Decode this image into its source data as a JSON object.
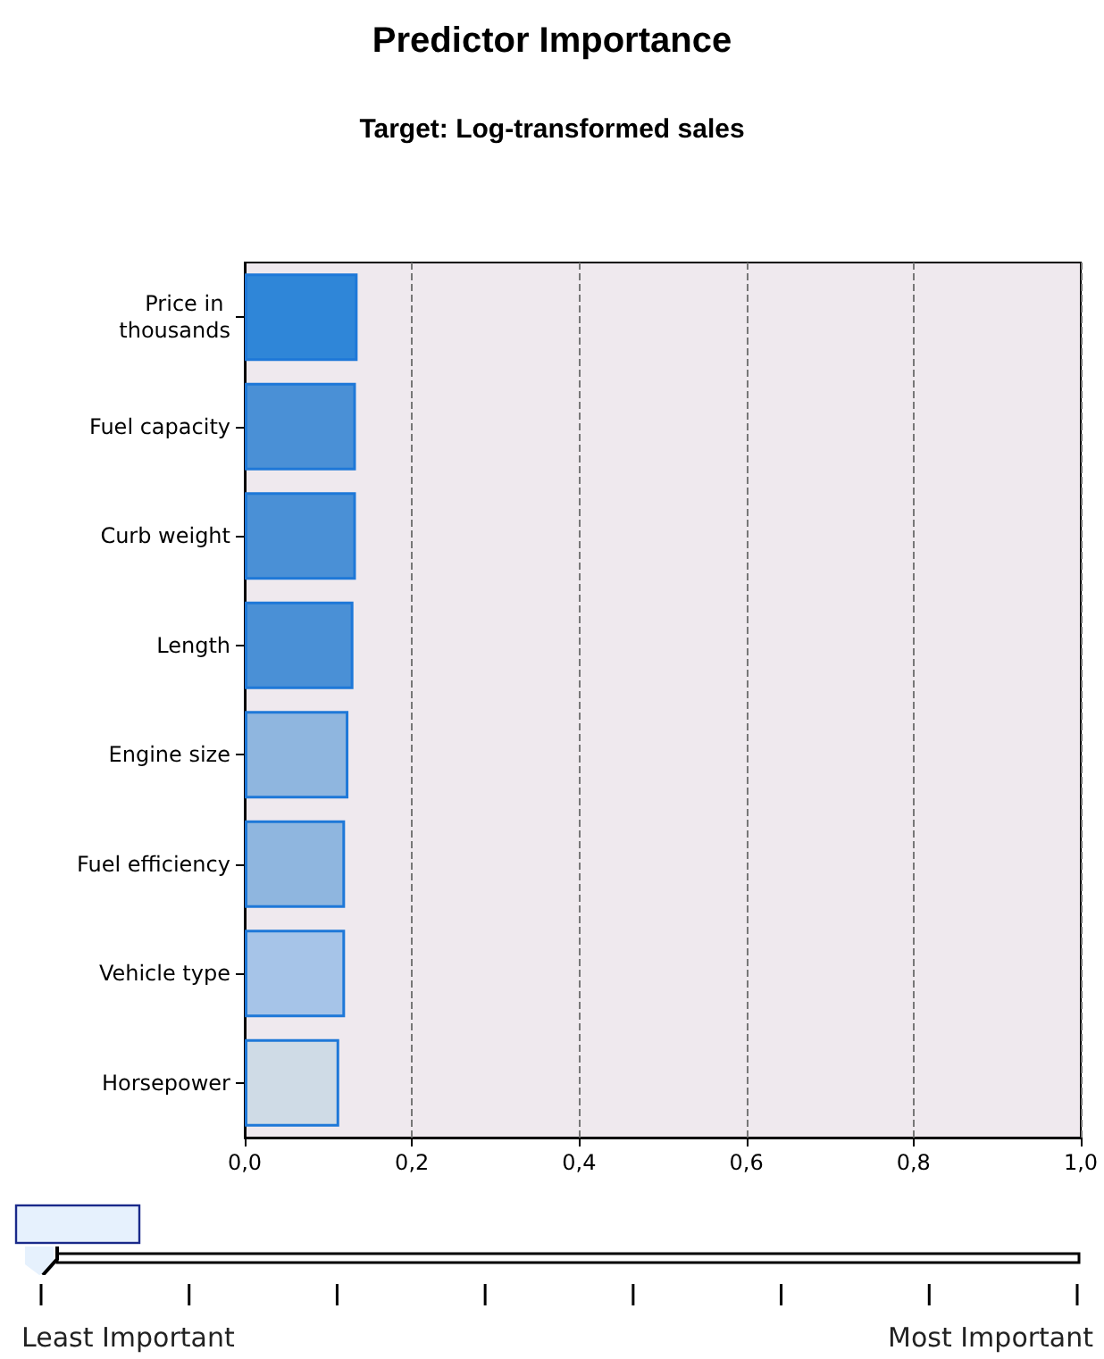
{
  "chart_data": {
    "type": "bar",
    "orientation": "horizontal",
    "title": "Predictor Importance",
    "subtitle": "Target: Log-transformed sales",
    "categories": [
      "Price in thousands",
      "Fuel capacity",
      "Curb weight",
      "Length",
      "Engine size",
      "Fuel efficiency",
      "Vehicle type",
      "Horsepower"
    ],
    "values": [
      0.135,
      0.133,
      0.133,
      0.13,
      0.124,
      0.12,
      0.12,
      0.113
    ],
    "colors": [
      "#2f86d8",
      "#4a90d6",
      "#4a90d6",
      "#4a90d6",
      "#8fb6df",
      "#8fb6df",
      "#a6c4e8",
      "#cfdbe6"
    ],
    "xlim": [
      0,
      1
    ],
    "xticks": [
      {
        "value": 0,
        "label": "0,0"
      },
      {
        "value": 0.2,
        "label": "0,2"
      },
      {
        "value": 0.4,
        "label": "0,4"
      },
      {
        "value": 0.6,
        "label": "0,6"
      },
      {
        "value": 0.8,
        "label": "0,8"
      },
      {
        "value": 1,
        "label": "1,0"
      }
    ],
    "grid": "x",
    "annotations": [
      "Least Important",
      "Most Important"
    ]
  }
}
